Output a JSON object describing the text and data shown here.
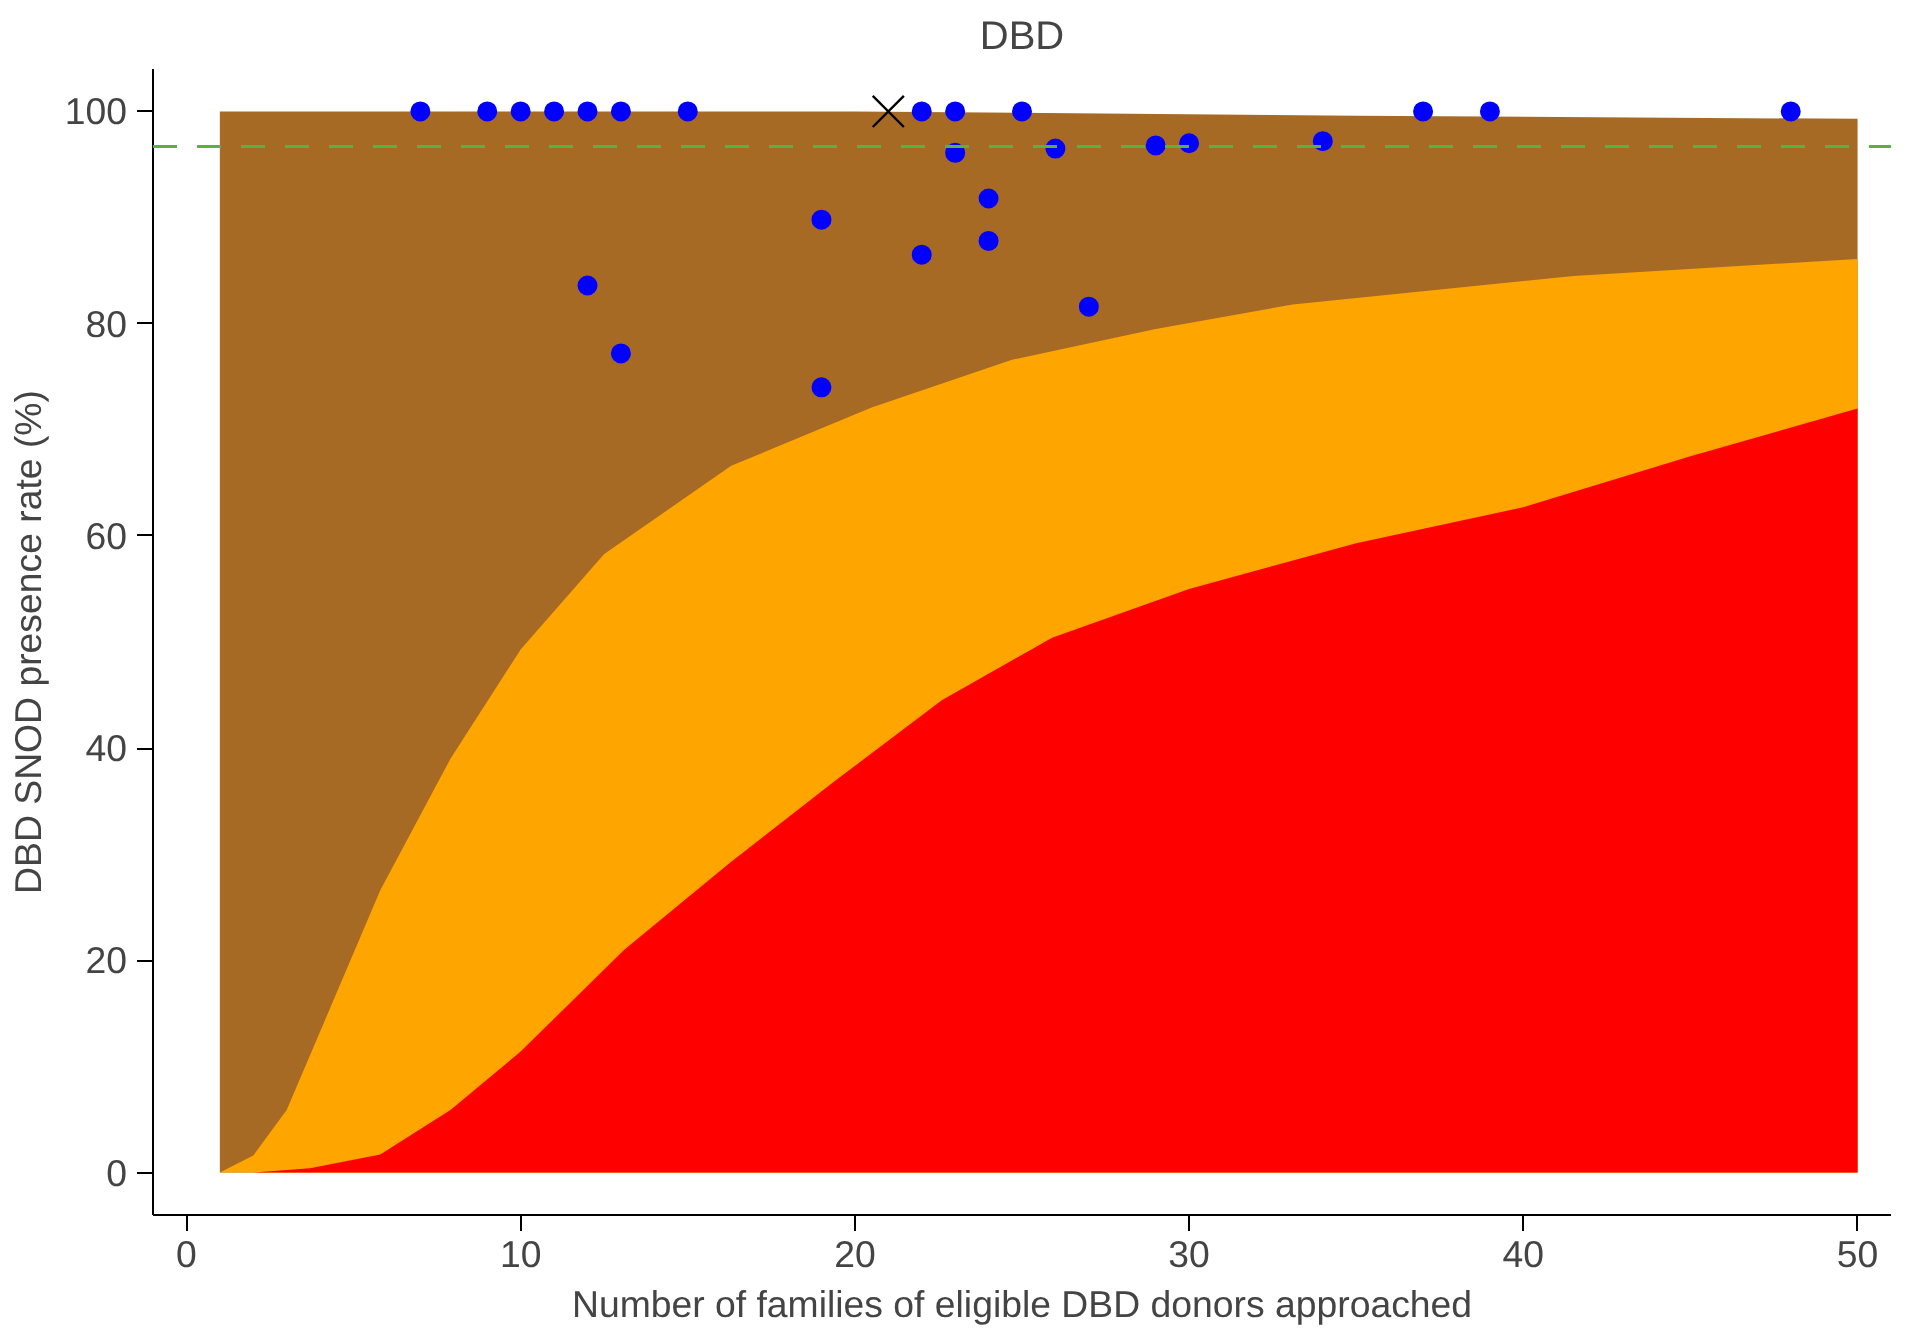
{
  "chart_data": {
    "type": "area",
    "title": "DBD",
    "xlabel": "Number of families of eligible DBD donors approached",
    "ylabel": "DBD SNOD presence rate (%)",
    "xlim": [
      -1,
      51
    ],
    "ylim": [
      -4,
      104
    ],
    "xticks": [
      0,
      10,
      20,
      30,
      40,
      50
    ],
    "yticks": [
      0,
      20,
      40,
      60,
      80,
      100
    ],
    "grid": false,
    "series": [
      {
        "color": "#a66a24",
        "x": [
          1,
          20,
          35,
          50
        ],
        "values": [
          100,
          100,
          99.6,
          99.3
        ]
      },
      {
        "color": "#ffa500",
        "x": [
          1,
          2,
          3,
          4.3,
          5.8,
          7.9,
          10,
          12.5,
          16.3,
          20.5,
          24.7,
          29,
          33.1,
          41.5,
          50
        ],
        "values": [
          0,
          1.6,
          5.9,
          15.5,
          26.6,
          39,
          49.3,
          58.3,
          66.6,
          72.1,
          76.6,
          79.5,
          81.8,
          84.5,
          86.1
        ]
      },
      {
        "color": "#ff0000",
        "x": [
          1,
          2,
          3.7,
          5.8,
          7.9,
          10,
          13.1,
          16.3,
          19.4,
          22.6,
          25.9,
          30,
          35,
          40,
          45,
          50
        ],
        "values": [
          0,
          0,
          0.4,
          1.7,
          5.9,
          11.4,
          21,
          29.3,
          36.9,
          44.5,
          50.4,
          55,
          59.3,
          62.7,
          67.5,
          72
        ]
      },
      {
        "type": "scatter",
        "marker": "circle",
        "color": "#0000ff",
        "x": [
          7,
          9,
          10,
          11,
          12,
          13,
          15,
          22,
          23,
          25,
          37,
          39,
          48,
          12,
          13,
          19,
          19,
          22,
          23,
          24,
          24,
          26,
          27,
          29,
          30,
          34
        ],
        "values": [
          100,
          100,
          100,
          100,
          100,
          100,
          100,
          100,
          100,
          100,
          100,
          100,
          100,
          83.6,
          77.2,
          89.8,
          74,
          86.5,
          96.1,
          91.8,
          87.8,
          96.5,
          81.6,
          96.8,
          97,
          97.2
        ]
      },
      {
        "type": "scatter",
        "marker": "cross",
        "color": "#000000",
        "x": [
          21
        ],
        "values": [
          100
        ]
      }
    ],
    "ref_lines": [
      {
        "axis": "y",
        "value": 96.7,
        "color": "#5cb040",
        "line_style": "dashed"
      }
    ]
  }
}
